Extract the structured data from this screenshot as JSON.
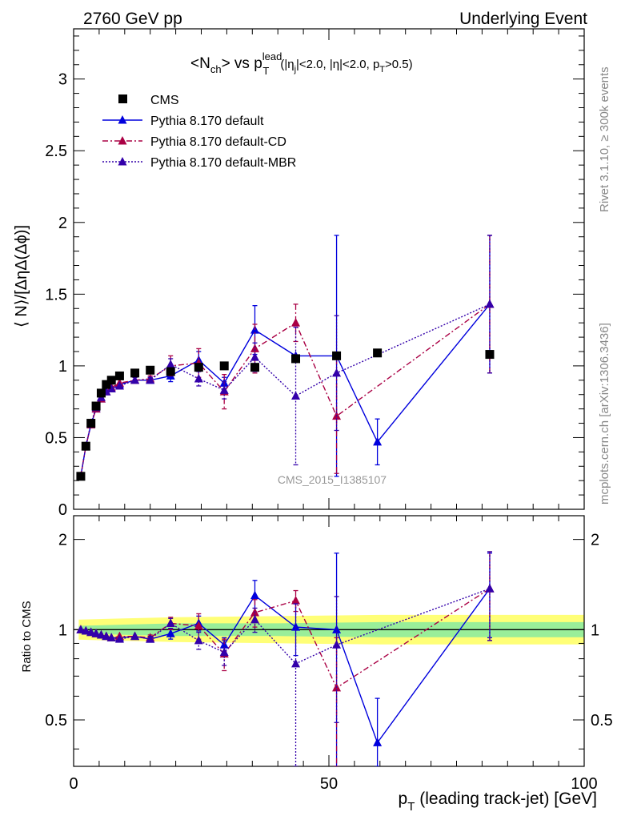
{
  "header": {
    "left": "2760 GeV pp",
    "right": "Underlying Event"
  },
  "side": {
    "rivet": "Rivet 3.1.10, ≥ 300k events",
    "mcplots": "mcplots.cern.ch [arXiv:1306.3436]"
  },
  "watermark": "CMS_2015_I1385107",
  "plot_title": {
    "main": "<N",
    "sub1": "ch",
    "mid": "> vs p",
    "sup": "lead",
    "sub2": "T",
    "cuts_a": "(|η",
    "cuts_sub": "j",
    "cuts_b": "|<2.0, |η|<2.0, p",
    "cuts_sub2": "T",
    "cuts_c": ">0.5)"
  },
  "axis_text": {
    "ylabel_main": "⟨ N⟩/[ΔηΔ(Δϕ)]",
    "ylabel_ratio": "Ratio to CMS",
    "xlabel_a": "p",
    "xlabel_sub": "T",
    "xlabel_b": " (leading track-jet) [GeV]"
  },
  "chart_data": [
    {
      "type": "scatter",
      "xlim": [
        0,
        100
      ],
      "ylim": [
        0,
        3.35
      ],
      "yticks": [
        0,
        0.5,
        1,
        1.5,
        2,
        2.5,
        3
      ],
      "ytick_labels": [
        "0",
        "0.5",
        "1",
        "1.5",
        "2",
        "2.5",
        "3"
      ],
      "legend_position": "top-left",
      "series": [
        {
          "name": "CMS",
          "color": "#000000",
          "style": "square",
          "points": [
            {
              "x": 1.4,
              "y": 0.23
            },
            {
              "x": 2.4,
              "y": 0.44
            },
            {
              "x": 3.4,
              "y": 0.6
            },
            {
              "x": 4.4,
              "y": 0.72
            },
            {
              "x": 5.4,
              "y": 0.81
            },
            {
              "x": 6.4,
              "y": 0.87
            },
            {
              "x": 7.4,
              "y": 0.9
            },
            {
              "x": 9.0,
              "y": 0.93
            },
            {
              "x": 12.0,
              "y": 0.95
            },
            {
              "x": 15.0,
              "y": 0.97
            },
            {
              "x": 19.0,
              "y": 0.96
            },
            {
              "x": 24.5,
              "y": 0.99
            },
            {
              "x": 29.5,
              "y": 1.0
            },
            {
              "x": 35.5,
              "y": 0.99
            },
            {
              "x": 43.5,
              "y": 1.05
            },
            {
              "x": 51.5,
              "y": 1.07
            },
            {
              "x": 59.5,
              "y": 1.09
            },
            {
              "x": 81.5,
              "y": 1.08
            }
          ]
        },
        {
          "name": "Pythia 8.170 default",
          "color": "#0000dd",
          "style": "solid",
          "points": [
            {
              "x": 1.4,
              "y": 0.23
            },
            {
              "x": 2.4,
              "y": 0.44
            },
            {
              "x": 3.4,
              "y": 0.59
            },
            {
              "x": 4.4,
              "y": 0.7
            },
            {
              "x": 5.4,
              "y": 0.77
            },
            {
              "x": 6.4,
              "y": 0.82
            },
            {
              "x": 7.4,
              "y": 0.84
            },
            {
              "x": 9.0,
              "y": 0.87
            },
            {
              "x": 12.0,
              "y": 0.9
            },
            {
              "x": 15.0,
              "y": 0.9
            },
            {
              "x": 19.0,
              "y": 0.93
            },
            {
              "x": 24.5,
              "y": 1.04
            },
            {
              "x": 29.5,
              "y": 0.88
            },
            {
              "x": 35.5,
              "y": 1.25
            },
            {
              "x": 43.5,
              "y": 1.07
            },
            {
              "x": 51.5,
              "y": 1.07
            },
            {
              "x": 59.5,
              "y": 0.47
            },
            {
              "x": 81.5,
              "y": 1.43
            }
          ],
          "err": [
            0,
            0,
            0,
            0,
            0,
            0,
            0,
            0,
            0.02,
            0.02,
            0.04,
            0.06,
            0.04,
            0.17,
            0.0,
            0.84,
            0.16,
            0.48
          ]
        },
        {
          "name": "Pythia 8.170 default-CD",
          "color": "#aa0044",
          "style": "dashdot",
          "points": [
            {
              "x": 1.4,
              "y": 0.23
            },
            {
              "x": 2.4,
              "y": 0.44
            },
            {
              "x": 3.4,
              "y": 0.59
            },
            {
              "x": 4.4,
              "y": 0.7
            },
            {
              "x": 5.4,
              "y": 0.77
            },
            {
              "x": 6.4,
              "y": 0.82
            },
            {
              "x": 7.4,
              "y": 0.85
            },
            {
              "x": 9.0,
              "y": 0.88
            },
            {
              "x": 12.0,
              "y": 0.9
            },
            {
              "x": 15.0,
              "y": 0.91
            },
            {
              "x": 19.0,
              "y": 1.0
            },
            {
              "x": 24.5,
              "y": 1.02
            },
            {
              "x": 29.5,
              "y": 0.82
            },
            {
              "x": 35.5,
              "y": 1.12
            },
            {
              "x": 43.5,
              "y": 1.3
            },
            {
              "x": 51.5,
              "y": 0.65
            },
            {
              "x": 81.5,
              "y": 1.43
            }
          ],
          "err": [
            0,
            0,
            0,
            0,
            0,
            0,
            0,
            0,
            0.02,
            0.02,
            0.07,
            0.1,
            0.12,
            0.17,
            0.13,
            0.4,
            0.48
          ]
        },
        {
          "name": "Pythia 8.170 default-MBR",
          "color": "#3300aa",
          "style": "dotted",
          "points": [
            {
              "x": 1.4,
              "y": 0.23
            },
            {
              "x": 2.4,
              "y": 0.44
            },
            {
              "x": 3.4,
              "y": 0.6
            },
            {
              "x": 4.4,
              "y": 0.71
            },
            {
              "x": 5.4,
              "y": 0.78
            },
            {
              "x": 6.4,
              "y": 0.82
            },
            {
              "x": 7.4,
              "y": 0.84
            },
            {
              "x": 9.0,
              "y": 0.86
            },
            {
              "x": 12.0,
              "y": 0.9
            },
            {
              "x": 15.0,
              "y": 0.9
            },
            {
              "x": 19.0,
              "y": 1.01
            },
            {
              "x": 24.5,
              "y": 0.91
            },
            {
              "x": 29.5,
              "y": 0.83
            },
            {
              "x": 35.5,
              "y": 1.06
            },
            {
              "x": 43.5,
              "y": 0.79
            },
            {
              "x": 51.5,
              "y": 0.95
            },
            {
              "x": 81.5,
              "y": 1.43
            }
          ],
          "err": [
            0,
            0,
            0,
            0,
            0,
            0,
            0,
            0,
            0.02,
            0.02,
            0.04,
            0.05,
            0.06,
            0.1,
            0.48,
            0.4,
            0.48
          ]
        }
      ]
    },
    {
      "type": "scatter",
      "xlim": [
        0,
        100
      ],
      "ylim": [
        0.35,
        2.4
      ],
      "log_y": true,
      "yticks": [
        0.5,
        1,
        2
      ],
      "ytick_labels": [
        "0.5",
        "1",
        "2"
      ],
      "xticks": [
        0,
        50,
        100
      ],
      "xtick_labels": [
        "0",
        "50",
        "100"
      ],
      "band_colors": {
        "inner": "#99ee99",
        "outer": "#ffff77"
      },
      "series": [
        {
          "name": "Pythia 8.170 default",
          "color": "#0000dd",
          "style": "solid",
          "points": [
            {
              "x": 1.4,
              "y": 1.0
            },
            {
              "x": 2.4,
              "y": 0.99
            },
            {
              "x": 3.4,
              "y": 0.98
            },
            {
              "x": 4.4,
              "y": 0.97
            },
            {
              "x": 5.4,
              "y": 0.96
            },
            {
              "x": 6.4,
              "y": 0.95
            },
            {
              "x": 7.4,
              "y": 0.94
            },
            {
              "x": 9.0,
              "y": 0.94
            },
            {
              "x": 12.0,
              "y": 0.95
            },
            {
              "x": 15.0,
              "y": 0.93
            },
            {
              "x": 19.0,
              "y": 0.97
            },
            {
              "x": 24.5,
              "y": 1.05
            },
            {
              "x": 29.5,
              "y": 0.89
            },
            {
              "x": 35.5,
              "y": 1.3
            },
            {
              "x": 43.5,
              "y": 1.02
            },
            {
              "x": 51.5,
              "y": 1.0
            },
            {
              "x": 59.5,
              "y": 0.42
            },
            {
              "x": 81.5,
              "y": 1.37
            }
          ],
          "err": [
            0,
            0,
            0,
            0,
            0,
            0,
            0,
            0,
            0,
            0.02,
            0.04,
            0.06,
            0.05,
            0.16,
            0.2,
            0.8,
            0.17,
            0.43
          ]
        },
        {
          "name": "Pythia 8.170 default-CD",
          "color": "#aa0044",
          "style": "dashdot",
          "points": [
            {
              "x": 1.4,
              "y": 1.0
            },
            {
              "x": 2.4,
              "y": 0.99
            },
            {
              "x": 3.4,
              "y": 0.98
            },
            {
              "x": 4.4,
              "y": 0.97
            },
            {
              "x": 5.4,
              "y": 0.96
            },
            {
              "x": 6.4,
              "y": 0.95
            },
            {
              "x": 7.4,
              "y": 0.94
            },
            {
              "x": 9.0,
              "y": 0.95
            },
            {
              "x": 12.0,
              "y": 0.95
            },
            {
              "x": 15.0,
              "y": 0.94
            },
            {
              "x": 19.0,
              "y": 1.05
            },
            {
              "x": 24.5,
              "y": 1.03
            },
            {
              "x": 29.5,
              "y": 0.83
            },
            {
              "x": 35.5,
              "y": 1.14
            },
            {
              "x": 43.5,
              "y": 1.25
            },
            {
              "x": 51.5,
              "y": 0.64
            },
            {
              "x": 81.5,
              "y": 1.37
            }
          ],
          "err": [
            0,
            0,
            0,
            0,
            0,
            0,
            0,
            0,
            0,
            0.02,
            0.05,
            0.1,
            0.1,
            0.12,
            0.1,
            0.3,
            0.45
          ]
        },
        {
          "name": "Pythia 8.170 default-MBR",
          "color": "#3300aa",
          "style": "dotted",
          "points": [
            {
              "x": 1.4,
              "y": 1.0
            },
            {
              "x": 2.4,
              "y": 0.99
            },
            {
              "x": 3.4,
              "y": 0.98
            },
            {
              "x": 4.4,
              "y": 0.97
            },
            {
              "x": 5.4,
              "y": 0.96
            },
            {
              "x": 6.4,
              "y": 0.95
            },
            {
              "x": 7.4,
              "y": 0.94
            },
            {
              "x": 9.0,
              "y": 0.93
            },
            {
              "x": 12.0,
              "y": 0.95
            },
            {
              "x": 15.0,
              "y": 0.93
            },
            {
              "x": 19.0,
              "y": 1.05
            },
            {
              "x": 24.5,
              "y": 0.92
            },
            {
              "x": 29.5,
              "y": 0.84
            },
            {
              "x": 35.5,
              "y": 1.08
            },
            {
              "x": 43.5,
              "y": 0.77
            },
            {
              "x": 51.5,
              "y": 0.89
            },
            {
              "x": 81.5,
              "y": 1.37
            }
          ],
          "err": [
            0,
            0,
            0,
            0,
            0,
            0,
            0,
            0,
            0,
            0.02,
            0.04,
            0.06,
            0.08,
            0.1,
            0.45,
            0.4,
            0.45
          ]
        }
      ]
    }
  ]
}
